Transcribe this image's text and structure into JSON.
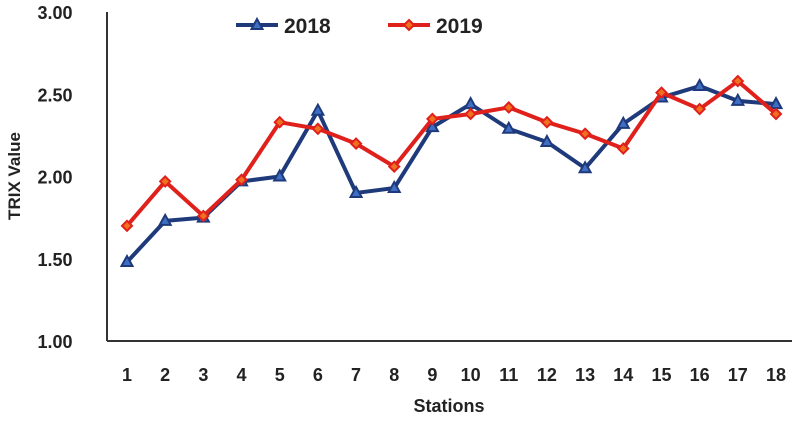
{
  "chart_data": {
    "type": "line",
    "title": "",
    "xlabel": "Stations",
    "ylabel": "TRIX Value",
    "ylim": [
      1.0,
      3.0
    ],
    "yticks": [
      "1.00",
      "1.50",
      "2.00",
      "2.50",
      "3.00"
    ],
    "categories": [
      "1",
      "2",
      "3",
      "4",
      "5",
      "6",
      "7",
      "8",
      "9",
      "10",
      "11",
      "12",
      "13",
      "14",
      "15",
      "16",
      "17",
      "18"
    ],
    "grid": false,
    "legend_position": "top",
    "series": [
      {
        "name": "2018",
        "color": "#1f3a7a",
        "marker": "triangle",
        "values": [
          1.48,
          1.73,
          1.75,
          1.97,
          2.0,
          2.4,
          1.9,
          1.93,
          2.3,
          2.44,
          2.29,
          2.21,
          2.05,
          2.32,
          2.48,
          2.55,
          2.46,
          2.44
        ]
      },
      {
        "name": "2019",
        "color": "#e0201b",
        "marker": "diamond",
        "values": [
          1.7,
          1.97,
          1.76,
          1.98,
          2.33,
          2.29,
          2.2,
          2.06,
          2.35,
          2.38,
          2.42,
          2.33,
          2.26,
          2.17,
          2.51,
          2.41,
          2.58,
          2.38
        ]
      }
    ]
  }
}
